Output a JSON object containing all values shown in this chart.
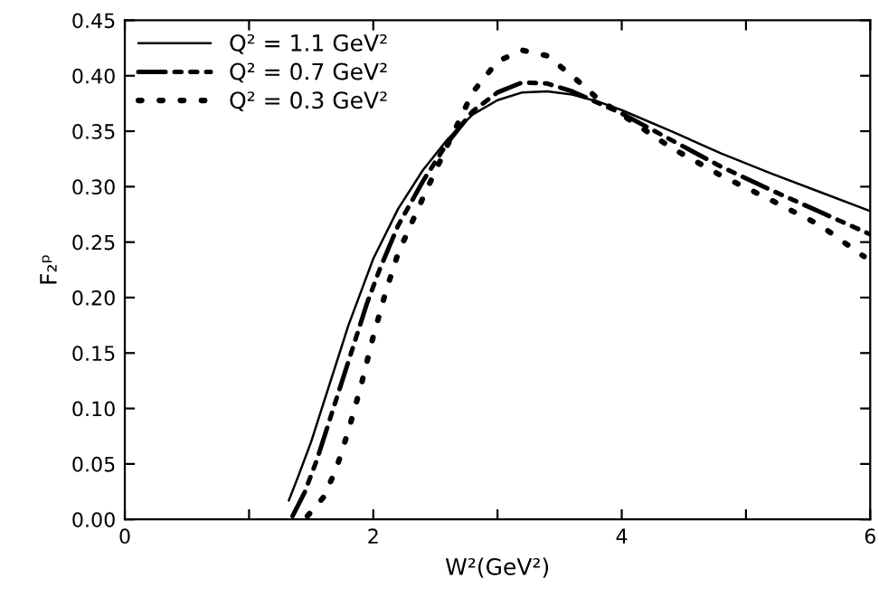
{
  "chart_data": {
    "type": "line",
    "xlabel": "W²(GeV²)",
    "ylabel": "F₂ᵖ",
    "xlim": [
      0,
      6
    ],
    "ylim": [
      0,
      0.45
    ],
    "xticks": [
      0,
      {
        "value": 1,
        "label": null
      },
      2,
      {
        "value": 3,
        "label": null
      },
      4,
      {
        "value": 5,
        "label": null
      },
      6
    ],
    "yticks": [
      {
        "value": 0,
        "label": "0.00"
      },
      {
        "value": 0.05,
        "label": "0.05"
      },
      {
        "value": 0.1,
        "label": "0.10"
      },
      {
        "value": 0.15,
        "label": "0.15"
      },
      {
        "value": 0.2,
        "label": "0.20"
      },
      {
        "value": 0.25,
        "label": "0.25"
      },
      {
        "value": 0.3,
        "label": "0.30"
      },
      {
        "value": 0.35,
        "label": "0.35"
      },
      {
        "value": 0.4,
        "label": "0.40"
      },
      {
        "value": 0.45,
        "label": "0.45"
      }
    ],
    "grid": false,
    "legend": "top left",
    "marker": "none",
    "series": [
      {
        "name": "Q² = 1.1 GeV²",
        "color": "#000000",
        "line_style": "solid",
        "x": [
          1.32,
          1.4,
          1.5,
          1.6,
          1.7,
          1.8,
          1.9,
          2.0,
          2.2,
          2.4,
          2.6,
          2.8,
          3.0,
          3.2,
          3.4,
          3.6,
          3.8,
          4.0,
          4.4,
          4.8,
          5.2,
          5.6,
          6.0
        ],
        "values": [
          0.017,
          0.04,
          0.07,
          0.105,
          0.14,
          0.175,
          0.205,
          0.235,
          0.28,
          0.315,
          0.343,
          0.365,
          0.378,
          0.385,
          0.386,
          0.383,
          0.377,
          0.369,
          0.35,
          0.33,
          0.312,
          0.295,
          0.278
        ]
      },
      {
        "name": "Q² = 0.7 GeV²",
        "color": "#000000",
        "line_style": "dashdot",
        "x": [
          1.35,
          1.45,
          1.55,
          1.65,
          1.75,
          1.85,
          1.95,
          2.05,
          2.2,
          2.4,
          2.6,
          2.8,
          3.0,
          3.2,
          3.4,
          3.6,
          3.8,
          4.0,
          4.4,
          4.8,
          5.2,
          5.6,
          6.0
        ],
        "values": [
          0.003,
          0.025,
          0.055,
          0.09,
          0.125,
          0.16,
          0.195,
          0.225,
          0.265,
          0.305,
          0.34,
          0.368,
          0.385,
          0.394,
          0.393,
          0.386,
          0.376,
          0.366,
          0.342,
          0.318,
          0.297,
          0.277,
          0.257
        ]
      },
      {
        "name": "Q² = 0.3 GeV²",
        "color": "#000000",
        "line_style": "dotted",
        "x": [
          1.47,
          1.6,
          1.7,
          1.8,
          1.9,
          2.0,
          2.1,
          2.2,
          2.4,
          2.6,
          2.8,
          3.0,
          3.2,
          3.4,
          3.6,
          3.8,
          4.0,
          4.4,
          4.8,
          5.2,
          5.6,
          5.95
        ],
        "values": [
          0.003,
          0.02,
          0.045,
          0.08,
          0.12,
          0.165,
          0.205,
          0.24,
          0.29,
          0.338,
          0.385,
          0.413,
          0.423,
          0.418,
          0.4,
          0.38,
          0.365,
          0.335,
          0.31,
          0.288,
          0.265,
          0.237
        ]
      }
    ]
  }
}
